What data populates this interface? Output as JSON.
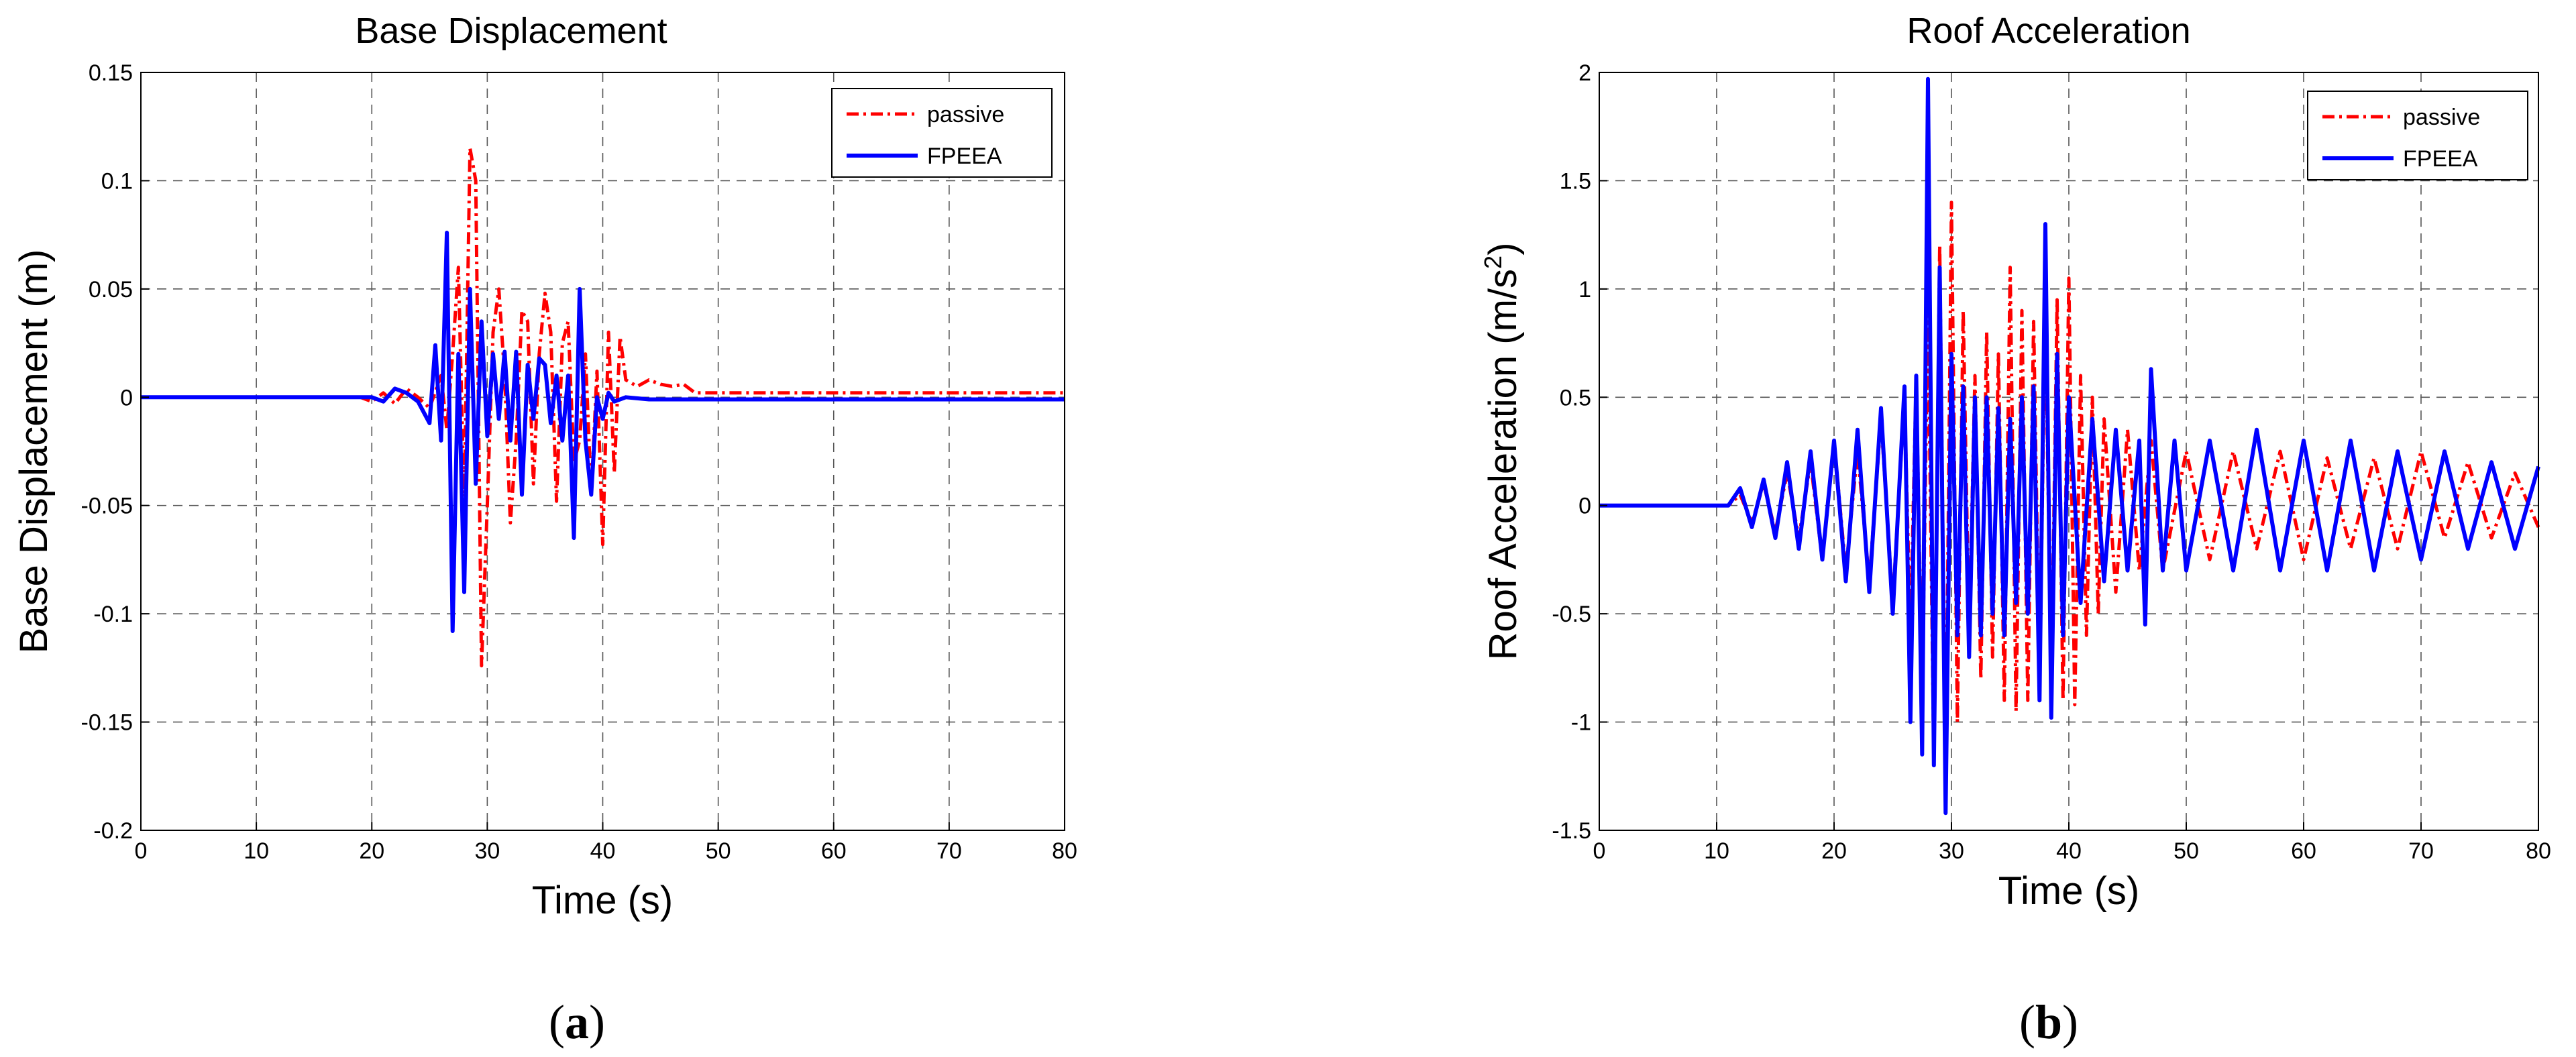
{
  "figure": {
    "panels": [
      {
        "label_open": "(",
        "label_letter": "a",
        "label_close": ")"
      },
      {
        "label_open": "(",
        "label_letter": "b",
        "label_close": ")"
      }
    ]
  },
  "chart_data": [
    {
      "type": "line",
      "title": "Base Displacement",
      "xlabel": "Time (s)",
      "ylabel": "Base Displacement (m)",
      "ylabel_sup": "",
      "ylabel_end": "",
      "xlim": [
        0,
        80
      ],
      "ylim": [
        -0.2,
        0.15
      ],
      "xticks": [
        0,
        10,
        20,
        30,
        40,
        50,
        60,
        70,
        80
      ],
      "xtick_labels": [
        "0",
        "10",
        "20",
        "30",
        "40",
        "50",
        "60",
        "70",
        "80"
      ],
      "yticks": [
        -0.2,
        -0.15,
        -0.1,
        -0.05,
        0,
        0.05,
        0.1,
        0.15
      ],
      "ytick_labels": [
        "-0.2",
        "-0.15",
        "-0.1",
        "-0.05",
        "0",
        "0.05",
        "0.1",
        "0.15"
      ],
      "grid": true,
      "legend_position": "top-right",
      "series": [
        {
          "name": "passive",
          "color": "#ff0000",
          "style": "dashdot",
          "x": [
            0,
            19,
            20,
            21,
            22,
            23,
            24,
            25,
            26,
            26.5,
            27,
            27.5,
            28,
            28.5,
            29,
            29.5,
            30,
            30.5,
            31,
            31.5,
            32,
            32.5,
            33,
            33.5,
            34,
            34.5,
            35,
            35.5,
            36,
            36.5,
            37,
            37.5,
            38,
            38.5,
            39,
            39.5,
            40,
            40.5,
            41,
            41.5,
            42,
            43,
            44,
            45,
            46,
            47,
            48,
            50,
            60,
            70,
            80
          ],
          "y": [
            0,
            0,
            -0.002,
            0.002,
            -0.003,
            0.004,
            0,
            -0.005,
            0.01,
            -0.015,
            0.02,
            0.06,
            -0.05,
            0.115,
            0.1,
            -0.124,
            -0.05,
            0.03,
            0.05,
            0.01,
            -0.058,
            -0.02,
            0.04,
            0.035,
            -0.04,
            0.02,
            0.048,
            0.03,
            -0.048,
            0.025,
            0.035,
            -0.03,
            -0.02,
            0.02,
            -0.045,
            0.012,
            -0.068,
            0.03,
            -0.035,
            0.028,
            0.008,
            0.005,
            0.008,
            0.006,
            0.005,
            0.006,
            0.002,
            0.002,
            0.002,
            0.002,
            0.002
          ]
        },
        {
          "name": "FPEEA",
          "color": "#0000ff",
          "style": "solid",
          "x": [
            0,
            20,
            21,
            22,
            23,
            24,
            25,
            25.5,
            26,
            26.5,
            27,
            27.5,
            28,
            28.5,
            29,
            29.5,
            30,
            30.5,
            31,
            31.5,
            32,
            32.5,
            33,
            33.5,
            34,
            34.5,
            35,
            35.5,
            36,
            36.5,
            37,
            37.5,
            38,
            38.5,
            39,
            39.5,
            40,
            40.5,
            41,
            42,
            44,
            46,
            48,
            50,
            60,
            70,
            80
          ],
          "y": [
            0,
            0,
            -0.002,
            0.004,
            0.002,
            -0.002,
            -0.012,
            0.024,
            -0.02,
            0.076,
            -0.108,
            0.02,
            -0.09,
            0.05,
            -0.04,
            0.035,
            -0.018,
            0.02,
            -0.01,
            0.021,
            -0.02,
            0.021,
            -0.045,
            0.015,
            -0.01,
            0.018,
            0.015,
            -0.012,
            0.01,
            -0.02,
            0.01,
            -0.065,
            0.05,
            -0.02,
            -0.045,
            0.0,
            -0.01,
            0.002,
            -0.002,
            0.0,
            -0.001,
            -0.001,
            -0.001,
            -0.001,
            -0.001,
            -0.001,
            -0.001
          ]
        }
      ]
    },
    {
      "type": "line",
      "title": "Roof Acceleration",
      "xlabel": "Time (s)",
      "ylabel": "Roof Acceleration (m/s",
      "ylabel_sup": "2",
      "ylabel_end": ")",
      "xlim": [
        0,
        80
      ],
      "ylim": [
        -1.5,
        2
      ],
      "xticks": [
        0,
        10,
        20,
        30,
        40,
        50,
        60,
        70,
        80
      ],
      "xtick_labels": [
        "0",
        "10",
        "20",
        "30",
        "40",
        "50",
        "60",
        "70",
        "80"
      ],
      "yticks": [
        -1.5,
        -1,
        -0.5,
        0,
        0.5,
        1,
        1.5,
        2
      ],
      "ytick_labels": [
        "-1.5",
        "-1",
        "-0.5",
        "0",
        "0.5",
        "1",
        "1.5",
        "2"
      ],
      "grid": true,
      "legend_position": "top-right",
      "series": [
        {
          "name": "passive",
          "color": "#ff0000",
          "style": "dashdot",
          "x": [
            0,
            11,
            12,
            13,
            14,
            15,
            16,
            17,
            18,
            19,
            20,
            21,
            22,
            23,
            24,
            25,
            26,
            26.5,
            27,
            27.5,
            28,
            28.5,
            29,
            29.5,
            30,
            30.5,
            31,
            31.5,
            32,
            32.5,
            33,
            33.5,
            34,
            34.5,
            35,
            35.5,
            36,
            36.5,
            37,
            37.5,
            38,
            38.5,
            39,
            39.5,
            40,
            40.5,
            41,
            41.5,
            42,
            42.5,
            43,
            44,
            45,
            46,
            47,
            48,
            50,
            52,
            54,
            56,
            58,
            60,
            62,
            64,
            66,
            68,
            70,
            72,
            74,
            76,
            78,
            80
          ],
          "y": [
            0,
            0,
            0.05,
            -0.08,
            0.1,
            -0.12,
            0.15,
            -0.15,
            0.2,
            -0.25,
            0.3,
            -0.3,
            0.25,
            -0.35,
            0.4,
            -0.45,
            0.5,
            -0.6,
            0.6,
            -0.9,
            0.9,
            -1.2,
            1.2,
            -1.3,
            1.4,
            -1.0,
            0.9,
            -0.6,
            0.6,
            -0.8,
            0.8,
            -0.7,
            0.7,
            -0.9,
            1.1,
            -0.95,
            0.9,
            -0.9,
            0.85,
            -0.8,
            0.9,
            -0.85,
            0.95,
            -0.9,
            1.05,
            -0.92,
            0.6,
            -0.6,
            0.5,
            -0.5,
            0.4,
            -0.4,
            0.35,
            -0.3,
            0.3,
            -0.3,
            0.25,
            -0.25,
            0.25,
            -0.2,
            0.25,
            -0.25,
            0.22,
            -0.2,
            0.22,
            -0.2,
            0.25,
            -0.15,
            0.2,
            -0.15,
            0.15,
            -0.1
          ]
        },
        {
          "name": "FPEEA",
          "color": "#0000ff",
          "style": "solid",
          "x": [
            0,
            11,
            12,
            13,
            14,
            15,
            16,
            17,
            18,
            19,
            20,
            21,
            22,
            23,
            24,
            25,
            26,
            26.5,
            27,
            27.5,
            28,
            28.5,
            29,
            29.5,
            30,
            30.5,
            31,
            31.5,
            32,
            32.5,
            33,
            33.5,
            34,
            34.5,
            35,
            35.5,
            36,
            36.5,
            37,
            37.5,
            38,
            38.5,
            39,
            39.5,
            40,
            41,
            42,
            43,
            44,
            45,
            46,
            46.5,
            47,
            48,
            49,
            50,
            52,
            54,
            56,
            58,
            60,
            62,
            64,
            66,
            68,
            70,
            72,
            74,
            76,
            78,
            80
          ],
          "y": [
            0,
            0,
            0.08,
            -0.1,
            0.12,
            -0.15,
            0.2,
            -0.2,
            0.25,
            -0.25,
            0.3,
            -0.35,
            0.35,
            -0.4,
            0.45,
            -0.5,
            0.55,
            -1.0,
            0.6,
            -1.15,
            1.97,
            -1.2,
            1.1,
            -1.42,
            0.7,
            -0.6,
            0.55,
            -0.7,
            0.5,
            -0.6,
            0.5,
            -0.5,
            0.45,
            -0.6,
            0.4,
            -0.45,
            0.5,
            -0.5,
            0.55,
            -0.9,
            1.3,
            -0.98,
            0.7,
            -0.6,
            0.5,
            -0.45,
            0.4,
            -0.35,
            0.35,
            -0.3,
            0.3,
            -0.55,
            0.63,
            -0.3,
            0.3,
            -0.3,
            0.3,
            -0.3,
            0.35,
            -0.3,
            0.3,
            -0.3,
            0.3,
            -0.3,
            0.25,
            -0.25,
            0.25,
            -0.2,
            0.2,
            -0.2,
            0.18
          ]
        }
      ]
    }
  ]
}
